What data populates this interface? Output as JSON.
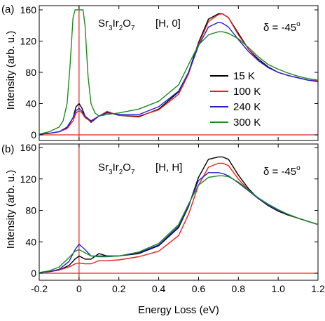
{
  "figure": {
    "xlabel": "Energy Loss (eV)",
    "ylabel": "Intensity (arb. u.)",
    "x_ticks": [
      "-0.2",
      "0",
      "0.2",
      "0.4",
      "0.6",
      "0.8",
      "1.0",
      "1.2"
    ],
    "y_ticks": [
      "0",
      "40",
      "80",
      "120",
      "160"
    ],
    "legend": [
      {
        "label": "15   K",
        "color": "#000000"
      },
      {
        "label": "100 K",
        "color": "#e8201c"
      },
      {
        "label": "240 K",
        "color": "#1f1fe0"
      },
      {
        "label": "300 K",
        "color": "#1f8a1f"
      }
    ]
  },
  "chart_data": [
    {
      "type": "line",
      "panel": "(a)",
      "compound": {
        "base": "Sr",
        "s1": "3",
        "mid": "Ir",
        "s2": "2",
        "end": "O",
        "s3": "7"
      },
      "direction": "[H, 0]",
      "delta": "δ = -45",
      "delta_unit": "o",
      "xlim": [
        -0.2,
        1.2
      ],
      "ylim": [
        0,
        160
      ],
      "xlabel": "Energy Loss (eV)",
      "ylabel": "Intensity (arb. u.)",
      "series": [
        {
          "name": "15   K",
          "color": "#000000",
          "x": [
            -0.2,
            -0.15,
            -0.1,
            -0.06,
            -0.03,
            -0.015,
            0,
            0.015,
            0.03,
            0.06,
            0.1,
            0.14,
            0.2,
            0.3,
            0.4,
            0.5,
            0.55,
            0.6,
            0.65,
            0.7,
            0.72,
            0.75,
            0.8,
            0.85,
            0.9,
            0.95,
            1.0,
            1.05,
            1.1,
            1.15,
            1.2
          ],
          "y": [
            1,
            2,
            4,
            9,
            22,
            36,
            40,
            34,
            24,
            16,
            24,
            29,
            25,
            23,
            33,
            55,
            80,
            118,
            148,
            155,
            155,
            150,
            130,
            110,
            97,
            87,
            80,
            76,
            73,
            70,
            69
          ]
        },
        {
          "name": "100 K",
          "color": "#e8201c",
          "x": [
            -0.2,
            -0.15,
            -0.1,
            -0.06,
            -0.03,
            -0.015,
            0,
            0.015,
            0.03,
            0.06,
            0.1,
            0.14,
            0.2,
            0.3,
            0.4,
            0.5,
            0.55,
            0.6,
            0.65,
            0.7,
            0.72,
            0.75,
            0.8,
            0.85,
            0.9,
            0.95,
            1.0,
            1.05,
            1.1,
            1.15,
            1.2
          ],
          "y": [
            1,
            2,
            4,
            8,
            18,
            28,
            31,
            28,
            22,
            17,
            24,
            30,
            25,
            24,
            32,
            52,
            78,
            116,
            145,
            154,
            155,
            150,
            128,
            110,
            95,
            86,
            80,
            76,
            73,
            70,
            69
          ]
        },
        {
          "name": "240 K",
          "color": "#1f1fe0",
          "x": [
            -0.2,
            -0.15,
            -0.1,
            -0.06,
            -0.03,
            -0.015,
            0,
            0.015,
            0.03,
            0.06,
            0.1,
            0.14,
            0.2,
            0.3,
            0.4,
            0.5,
            0.55,
            0.6,
            0.65,
            0.7,
            0.72,
            0.75,
            0.8,
            0.85,
            0.9,
            0.95,
            1.0,
            1.05,
            1.1,
            1.15,
            1.2
          ],
          "y": [
            1,
            2,
            4,
            10,
            22,
            31,
            34,
            30,
            24,
            18,
            24,
            28,
            26,
            26,
            36,
            56,
            80,
            114,
            138,
            144,
            143,
            138,
            122,
            107,
            95,
            86,
            80,
            76,
            73,
            70,
            68
          ]
        },
        {
          "name": "300 K",
          "color": "#1f8a1f",
          "x": [
            -0.2,
            -0.15,
            -0.1,
            -0.08,
            -0.06,
            -0.045,
            -0.03,
            -0.02,
            0.02,
            0.03,
            0.045,
            0.06,
            0.08,
            0.1,
            0.14,
            0.2,
            0.3,
            0.4,
            0.5,
            0.55,
            0.6,
            0.65,
            0.7,
            0.72,
            0.75,
            0.8,
            0.85,
            0.9,
            0.95,
            1.0,
            1.05,
            1.1,
            1.15,
            1.2
          ],
          "y": [
            1,
            4,
            10,
            18,
            40,
            90,
            150,
            160,
            160,
            140,
            75,
            40,
            28,
            24,
            26,
            28,
            33,
            43,
            64,
            90,
            115,
            128,
            132,
            132,
            130,
            123,
            112,
            100,
            90,
            84,
            79,
            75,
            72,
            70
          ]
        }
      ]
    },
    {
      "type": "line",
      "panel": "(b)",
      "compound": {
        "base": "Sr",
        "s1": "3",
        "mid": "Ir",
        "s2": "2",
        "end": "O",
        "s3": "7"
      },
      "direction": "[H, H]",
      "delta": "δ = -45",
      "delta_unit": "o",
      "xlim": [
        -0.2,
        1.2
      ],
      "ylim": [
        0,
        160
      ],
      "xlabel": "Energy Loss (eV)",
      "ylabel": "Intensity (arb. u.)",
      "series": [
        {
          "name": "15   K",
          "color": "#000000",
          "x": [
            -0.2,
            -0.15,
            -0.1,
            -0.05,
            -0.02,
            0,
            0.03,
            0.06,
            0.1,
            0.14,
            0.2,
            0.3,
            0.4,
            0.5,
            0.55,
            0.6,
            0.65,
            0.7,
            0.72,
            0.75,
            0.8,
            0.85,
            0.9,
            0.95,
            1.0,
            1.05,
            1.1,
            1.15,
            1.2
          ],
          "y": [
            1,
            2,
            4,
            10,
            18,
            22,
            18,
            18,
            25,
            22,
            22,
            25,
            35,
            58,
            85,
            122,
            145,
            148,
            148,
            145,
            125,
            108,
            95,
            86,
            79,
            74,
            70,
            66,
            62
          ]
        },
        {
          "name": "100 K",
          "color": "#e8201c",
          "x": [
            -0.2,
            -0.15,
            -0.1,
            -0.05,
            -0.02,
            0,
            0.03,
            0.06,
            0.1,
            0.14,
            0.2,
            0.3,
            0.4,
            0.5,
            0.55,
            0.6,
            0.65,
            0.7,
            0.72,
            0.75,
            0.8,
            0.85,
            0.9,
            0.95,
            1.0,
            1.05,
            1.1,
            1.15,
            1.2
          ],
          "y": [
            1,
            2,
            4,
            8,
            12,
            13,
            12,
            12,
            16,
            16,
            17,
            21,
            28,
            48,
            75,
            112,
            135,
            140,
            140,
            137,
            120,
            106,
            95,
            87,
            80,
            75,
            70,
            66,
            62
          ]
        },
        {
          "name": "240 K",
          "color": "#1f1fe0",
          "x": [
            -0.2,
            -0.15,
            -0.1,
            -0.05,
            -0.02,
            0,
            0.03,
            0.06,
            0.1,
            0.14,
            0.2,
            0.3,
            0.4,
            0.5,
            0.55,
            0.6,
            0.65,
            0.7,
            0.72,
            0.75,
            0.8,
            0.85,
            0.9,
            0.95,
            1.0,
            1.05,
            1.1,
            1.15,
            1.2
          ],
          "y": [
            1,
            2,
            5,
            15,
            30,
            37,
            30,
            22,
            22,
            22,
            22,
            26,
            36,
            60,
            86,
            118,
            128,
            128,
            127,
            124,
            115,
            105,
            95,
            87,
            80,
            75,
            70,
            66,
            62
          ]
        },
        {
          "name": "300 K",
          "color": "#1f8a1f",
          "x": [
            -0.2,
            -0.15,
            -0.1,
            -0.05,
            -0.02,
            0,
            0.03,
            0.06,
            0.1,
            0.14,
            0.2,
            0.3,
            0.4,
            0.5,
            0.55,
            0.6,
            0.65,
            0.7,
            0.72,
            0.75,
            0.8,
            0.85,
            0.9,
            0.95,
            1.0,
            1.05,
            1.1,
            1.15,
            1.2
          ],
          "y": [
            1,
            3,
            8,
            20,
            28,
            30,
            26,
            22,
            21,
            21,
            22,
            27,
            38,
            62,
            88,
            112,
            122,
            124,
            124,
            123,
            116,
            106,
            96,
            88,
            81,
            75,
            70,
            66,
            62
          ]
        }
      ]
    }
  ]
}
